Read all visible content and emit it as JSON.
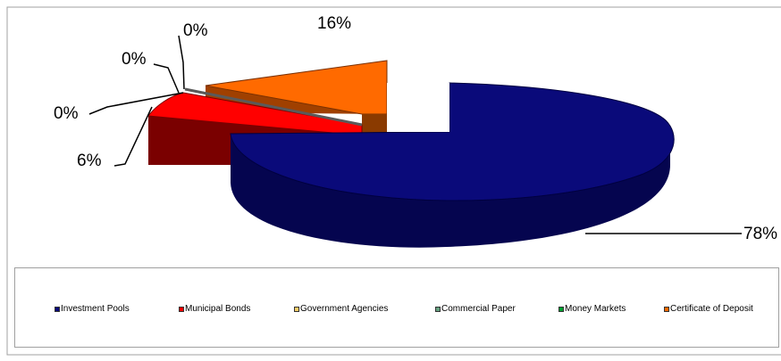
{
  "chart_data": {
    "type": "pie",
    "style": "3d-exploded",
    "categories": [
      "Investment Pools",
      "Municipal Bonds",
      "Government Agencies",
      "Commercial Paper",
      "Money Markets",
      "Certificate of Deposit"
    ],
    "values": [
      78,
      6,
      0,
      0,
      0,
      16
    ],
    "data_labels": [
      "78%",
      "6%",
      "0%",
      "0%",
      "0%",
      "16%"
    ],
    "colors": [
      "#0a0a7a",
      "#ff0000",
      "#ffcc66",
      "#66a080",
      "#00a030",
      "#ff6a00"
    ],
    "legend_position": "bottom"
  }
}
